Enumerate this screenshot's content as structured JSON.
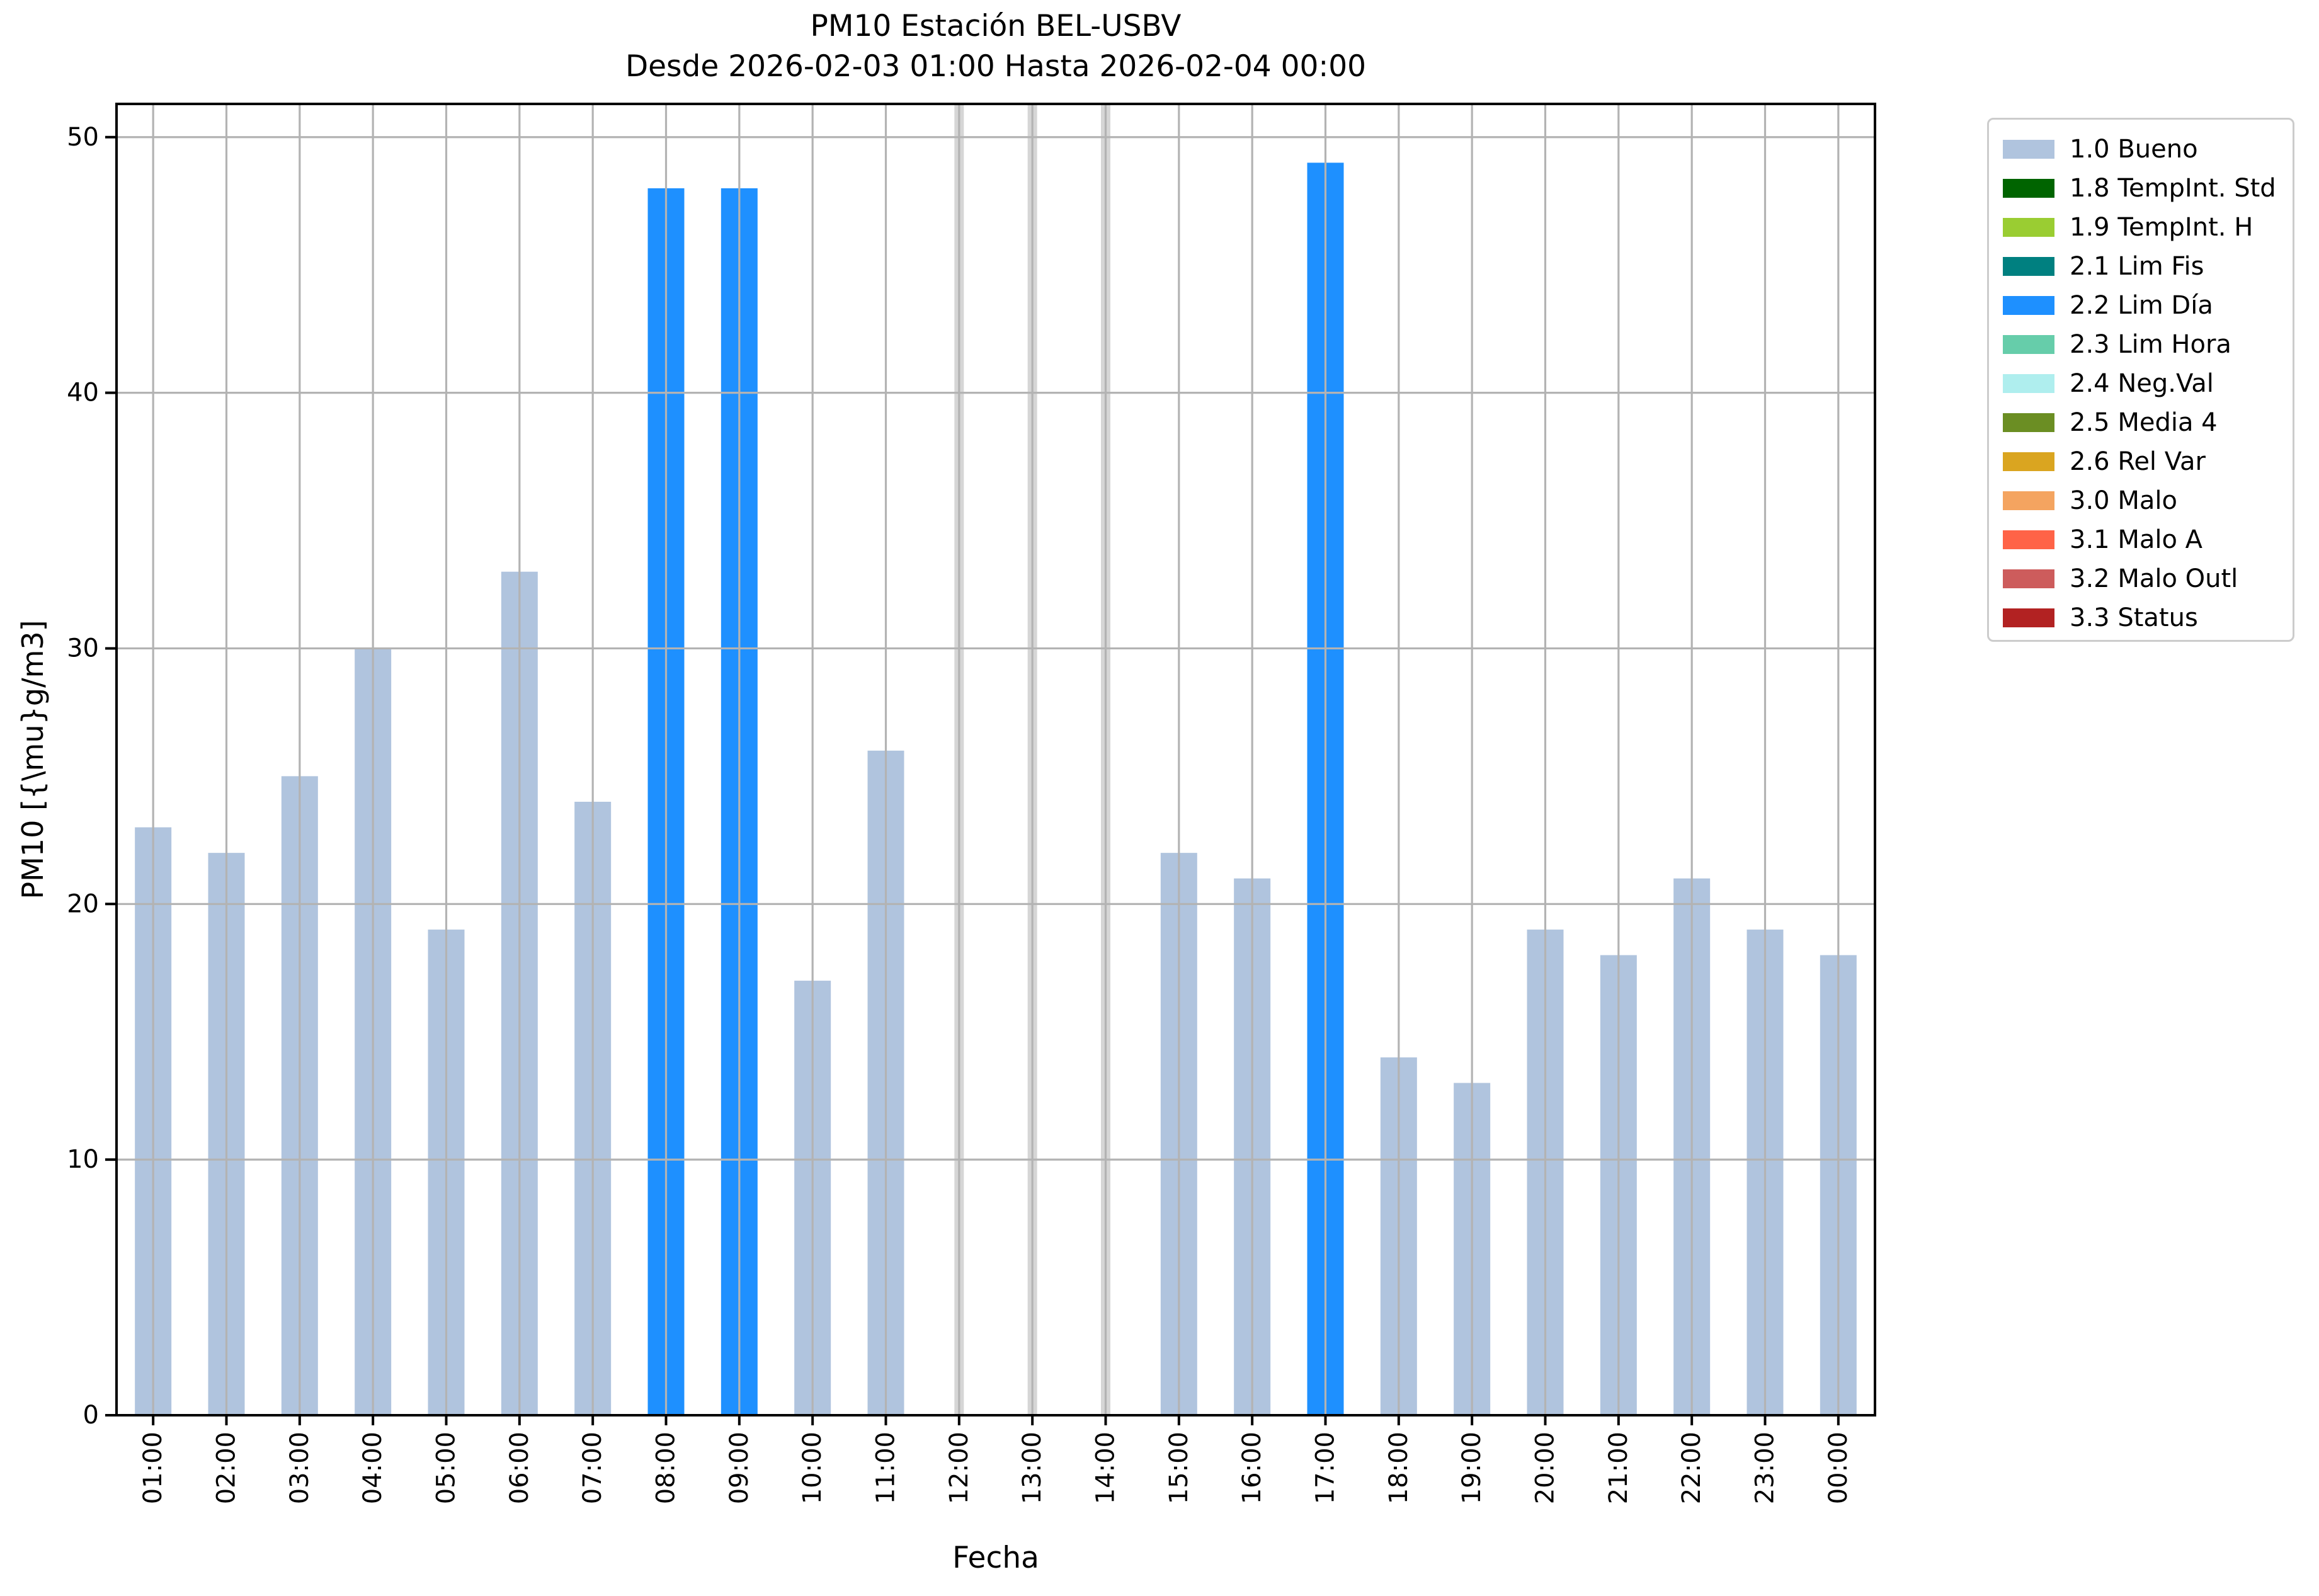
{
  "chart_data": {
    "type": "bar",
    "title": "PM10 Estación BEL-USBV",
    "subtitle": "Desde 2026-02-03 01:00 Hasta 2026-02-04 00:00",
    "xlabel": "Fecha",
    "ylabel": "PM10 [{\\mu}g/m3]",
    "ylim": [
      0,
      51.3
    ],
    "yticks": [
      0,
      10,
      20,
      30,
      40,
      50
    ],
    "grid": true,
    "categories": [
      "01:00",
      "02:00",
      "03:00",
      "04:00",
      "05:00",
      "06:00",
      "07:00",
      "08:00",
      "09:00",
      "10:00",
      "11:00",
      "12:00",
      "13:00",
      "14:00",
      "15:00",
      "16:00",
      "17:00",
      "18:00",
      "19:00",
      "20:00",
      "21:00",
      "22:00",
      "23:00",
      "00:00"
    ],
    "bars": [
      {
        "time": "01:00",
        "value": 23,
        "status": "1.0 Bueno"
      },
      {
        "time": "02:00",
        "value": 22,
        "status": "1.0 Bueno"
      },
      {
        "time": "03:00",
        "value": 25,
        "status": "1.0 Bueno"
      },
      {
        "time": "04:00",
        "value": 30,
        "status": "1.0 Bueno"
      },
      {
        "time": "05:00",
        "value": 19,
        "status": "1.0 Bueno"
      },
      {
        "time": "06:00",
        "value": 33,
        "status": "1.0 Bueno"
      },
      {
        "time": "07:00",
        "value": 24,
        "status": "1.0 Bueno"
      },
      {
        "time": "08:00",
        "value": 48,
        "status": "2.2 Lim Día"
      },
      {
        "time": "09:00",
        "value": 48,
        "status": "2.2 Lim Día"
      },
      {
        "time": "10:00",
        "value": 17,
        "status": "1.0 Bueno"
      },
      {
        "time": "11:00",
        "value": 26,
        "status": "1.0 Bueno"
      },
      {
        "time": "12:00",
        "value": null,
        "status": "no data"
      },
      {
        "time": "13:00",
        "value": null,
        "status": "no data"
      },
      {
        "time": "14:00",
        "value": null,
        "status": "no data"
      },
      {
        "time": "15:00",
        "value": 22,
        "status": "1.0 Bueno"
      },
      {
        "time": "16:00",
        "value": 21,
        "status": "1.0 Bueno"
      },
      {
        "time": "17:00",
        "value": 49,
        "status": "2.2 Lim Día"
      },
      {
        "time": "18:00",
        "value": 14,
        "status": "1.0 Bueno"
      },
      {
        "time": "19:00",
        "value": 13,
        "status": "1.0 Bueno"
      },
      {
        "time": "20:00",
        "value": 19,
        "status": "1.0 Bueno"
      },
      {
        "time": "21:00",
        "value": 18,
        "status": "1.0 Bueno"
      },
      {
        "time": "22:00",
        "value": 21,
        "status": "1.0 Bueno"
      },
      {
        "time": "23:00",
        "value": 19,
        "status": "1.0 Bueno"
      },
      {
        "time": "00:00",
        "value": 18,
        "status": "1.0 Bueno"
      }
    ],
    "colors": {
      "no_data": "#D6D6D6",
      "grid": "#B3B3B3",
      "spine": "#000000"
    },
    "legend_position": "outside upper right",
    "legend": {
      "items": [
        {
          "label": "1.0 Bueno",
          "color": "#B0C4DE"
        },
        {
          "label": "1.8 TempInt. Std",
          "color": "#006400"
        },
        {
          "label": "1.9 TempInt. H",
          "color": "#9ACD32"
        },
        {
          "label": "2.1 Lim Fis",
          "color": "#008080"
        },
        {
          "label": "2.2 Lim Día",
          "color": "#1E90FF"
        },
        {
          "label": "2.3 Lim Hora",
          "color": "#66CDAA"
        },
        {
          "label": "2.4 Neg.Val",
          "color": "#AFEEEE"
        },
        {
          "label": "2.5 Media 4",
          "color": "#6B8E23"
        },
        {
          "label": "2.6 Rel Var",
          "color": "#DAA520"
        },
        {
          "label": "3.0 Malo",
          "color": "#F4A460"
        },
        {
          "label": "3.1 Malo A",
          "color": "#FF6347"
        },
        {
          "label": "3.2 Malo Outl",
          "color": "#CD5C5C"
        },
        {
          "label": "3.3 Status",
          "color": "#B22222"
        }
      ]
    }
  }
}
